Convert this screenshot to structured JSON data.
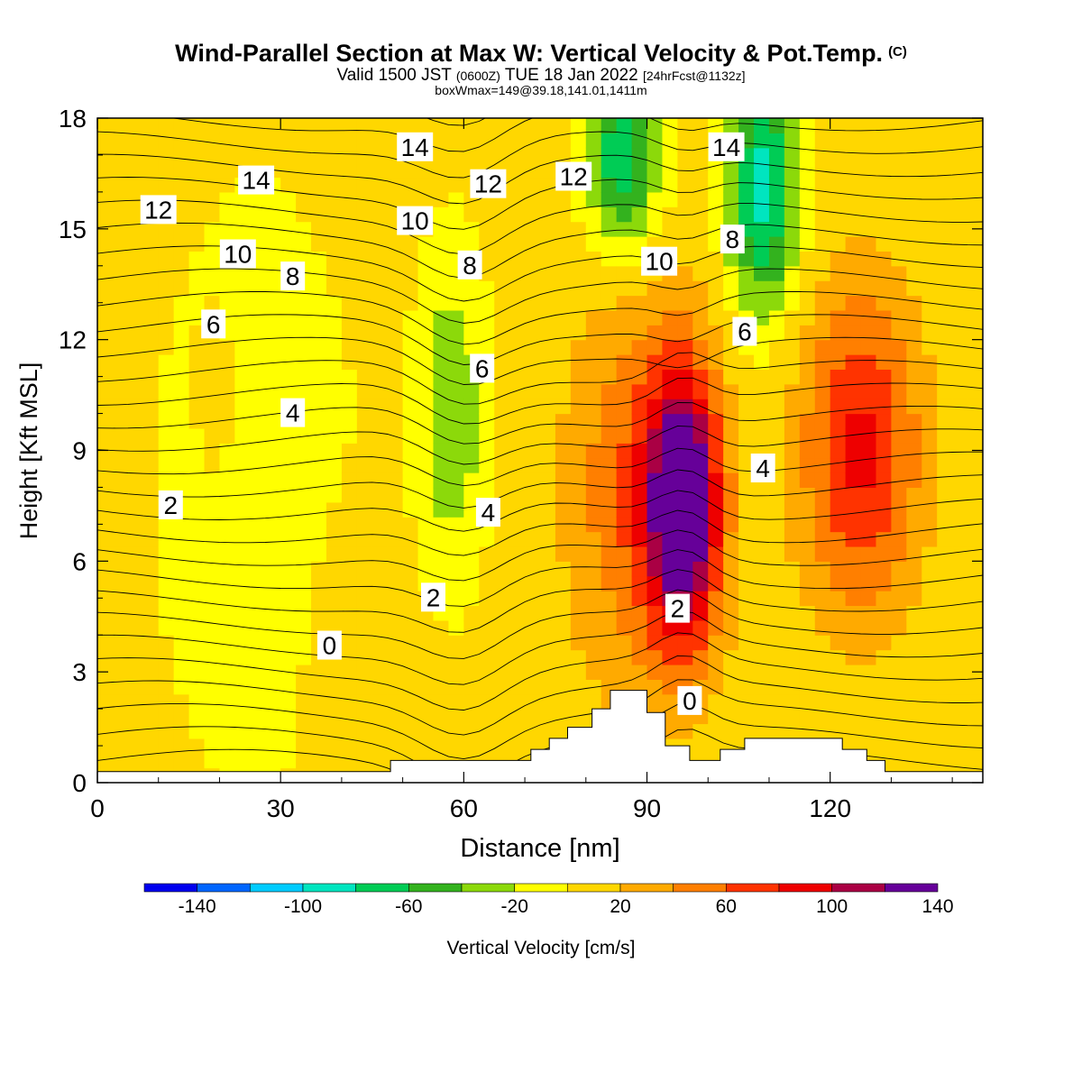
{
  "header": {
    "title": "Wind-Parallel Section at Max W: Vertical Velocity & Pot.Temp.",
    "copyright": "(C)",
    "valid_prefix": "Valid 1500 JST",
    "valid_utc": "(0600Z)",
    "valid_date": "TUE 18 Jan 2022",
    "forecast": "[24hrFcst@1132z]",
    "box_info": "boxWmax=149@39.18,141.01,1411m"
  },
  "colors": {
    "scale": [
      "#0000ee",
      "#0066ff",
      "#00ccff",
      "#00e5bf",
      "#00cc55",
      "#33b21e",
      "#8cd90a",
      "#ffff00",
      "#ffd700",
      "#ffaa00",
      "#ff7f00",
      "#ff3300",
      "#ee0000",
      "#aa0044",
      "#660099"
    ],
    "contour": "#000000",
    "terrain": "#ffffff"
  },
  "chart_data": {
    "type": "heatmap",
    "xlabel": "Distance [nm]",
    "ylabel": "Height [Kft MSL]",
    "xlim": [
      0,
      145
    ],
    "ylim": [
      0,
      18
    ],
    "xticks": [
      0,
      30,
      60,
      90,
      120
    ],
    "yticks": [
      0,
      3,
      6,
      9,
      12,
      15,
      18
    ],
    "colorbar": {
      "label": "Vertical Velocity [cm/s]",
      "bounds": [
        -160,
        -140,
        -120,
        -100,
        -80,
        -60,
        -40,
        -20,
        0,
        20,
        40,
        60,
        80,
        100,
        120,
        140
      ],
      "tick_labels": [
        "-140",
        "-100",
        "-60",
        "-20",
        "20",
        "60",
        "100",
        "140"
      ],
      "tick_values": [
        -140,
        -100,
        -60,
        -20,
        20,
        60,
        100,
        140
      ]
    },
    "max_w_cm_s": 149,
    "w_features": [
      {
        "x": 96,
        "z": 7.5,
        "peak": 149,
        "sx": 4.5,
        "sz": 2.8
      },
      {
        "x": 125,
        "z": 9.0,
        "peak": 80,
        "sx": 7,
        "sz": 3.2
      },
      {
        "x": 86,
        "z": 8.0,
        "peak": 45,
        "sx": 7,
        "sz": 4
      },
      {
        "x": 109,
        "z": 16.0,
        "peak": -95,
        "sx": 4,
        "sz": 2.2
      },
      {
        "x": 86,
        "z": 17.0,
        "peak": -85,
        "sx": 4,
        "sz": 1.8
      },
      {
        "x": 58,
        "z": 10.0,
        "peak": -45,
        "sx": 3.5,
        "sz": 2.8
      },
      {
        "x": 26,
        "z": 8.0,
        "peak": -20,
        "sx": 10,
        "sz": 5
      },
      {
        "x": 20,
        "z": 10.0,
        "peak": 15,
        "sx": 3,
        "sz": 2
      },
      {
        "x": 40,
        "z": 3.5,
        "peak": 15,
        "sx": 4,
        "sz": 2.5
      }
    ],
    "terrain_kft": [
      [
        0,
        0.3
      ],
      [
        48,
        0.3
      ],
      [
        48,
        0.6
      ],
      [
        71,
        0.6
      ],
      [
        71,
        0.9
      ],
      [
        74,
        0.9
      ],
      [
        74,
        1.2
      ],
      [
        77,
        1.2
      ],
      [
        77,
        1.5
      ],
      [
        81,
        1.5
      ],
      [
        81,
        2.0
      ],
      [
        84,
        2.0
      ],
      [
        84,
        2.5
      ],
      [
        87,
        2.5
      ],
      [
        87,
        2.5
      ],
      [
        90,
        2.5
      ],
      [
        90,
        1.9
      ],
      [
        93,
        1.9
      ],
      [
        93,
        1.0
      ],
      [
        97,
        1.0
      ],
      [
        97,
        0.6
      ],
      [
        102,
        0.6
      ],
      [
        102,
        0.9
      ],
      [
        106,
        0.9
      ],
      [
        106,
        1.2
      ],
      [
        122,
        1.2
      ],
      [
        122,
        0.9
      ],
      [
        126,
        0.9
      ],
      [
        126,
        0.6
      ],
      [
        129,
        0.6
      ],
      [
        129,
        0.3
      ],
      [
        145,
        0.3
      ]
    ],
    "theta_contour_labels": [
      {
        "text": "0",
        "x": 38,
        "z": 3.7
      },
      {
        "text": "0",
        "x": 97,
        "z": 2.2
      },
      {
        "text": "2",
        "x": 12,
        "z": 7.5
      },
      {
        "text": "2",
        "x": 55,
        "z": 5.0
      },
      {
        "text": "2",
        "x": 95,
        "z": 4.7
      },
      {
        "text": "4",
        "x": 32,
        "z": 10.0
      },
      {
        "text": "4",
        "x": 64,
        "z": 7.3
      },
      {
        "text": "4",
        "x": 109,
        "z": 8.5
      },
      {
        "text": "6",
        "x": 19,
        "z": 12.4
      },
      {
        "text": "6",
        "x": 63,
        "z": 11.2
      },
      {
        "text": "6",
        "x": 106,
        "z": 12.2
      },
      {
        "text": "8",
        "x": 32,
        "z": 13.7
      },
      {
        "text": "8",
        "x": 61,
        "z": 14.0
      },
      {
        "text": "8",
        "x": 104,
        "z": 14.7
      },
      {
        "text": "10",
        "x": 23,
        "z": 14.3
      },
      {
        "text": "10",
        "x": 52,
        "z": 15.2
      },
      {
        "text": "10",
        "x": 92,
        "z": 14.1
      },
      {
        "text": "12",
        "x": 10,
        "z": 15.5
      },
      {
        "text": "12",
        "x": 64,
        "z": 16.2
      },
      {
        "text": "12",
        "x": 78,
        "z": 16.4
      },
      {
        "text": "14",
        "x": 26,
        "z": 16.3
      },
      {
        "text": "14",
        "x": 52,
        "z": 17.2
      },
      {
        "text": "14",
        "x": 103,
        "z": 17.2
      }
    ]
  }
}
